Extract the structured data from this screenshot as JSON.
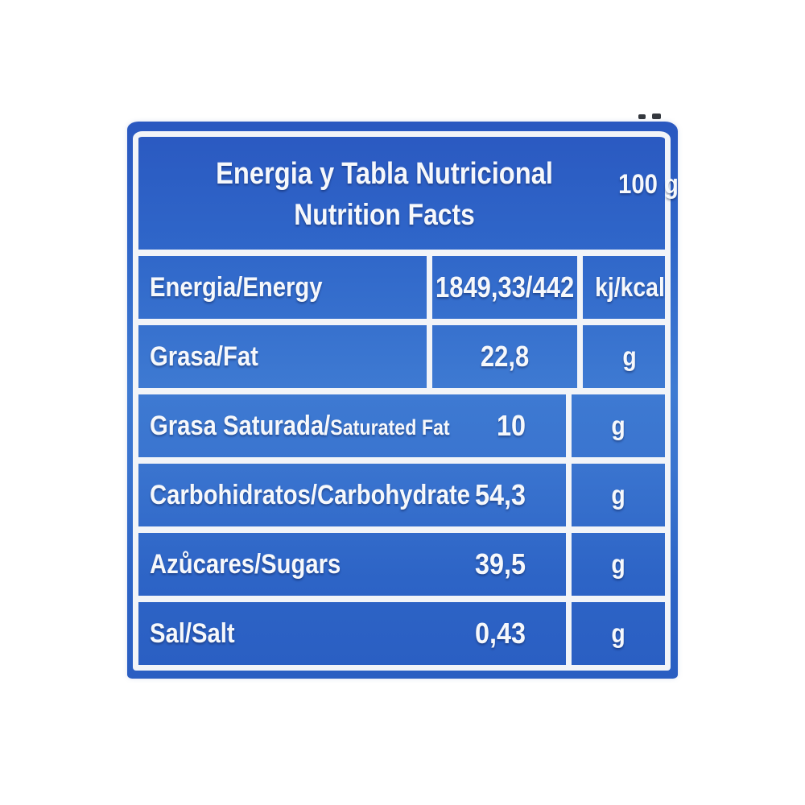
{
  "label": {
    "header": {
      "title_es": "Energia y Tabla Nutricional",
      "title_en": "Nutrition Facts",
      "serving_size": "100 g"
    },
    "rows": [
      {
        "name": "Energia/Energy",
        "value": "1849,33/442",
        "unit": "kj/kcal"
      },
      {
        "name": "Grasa/Fat",
        "value": "22,8",
        "unit": "g"
      },
      {
        "name": "Grasa Saturada/",
        "name_small": "Saturated Fat",
        "value": "10",
        "unit": "g"
      },
      {
        "name": "Carbohidratos/Carbohydrate",
        "value": "54,3",
        "unit": "g"
      },
      {
        "name": "Azůcares/Sugars",
        "value": "39,5",
        "unit": "g"
      },
      {
        "name": "Sal/Salt",
        "value": "0,43",
        "unit": "g"
      }
    ],
    "colors": {
      "panel_blue": "#2f66c9",
      "panel_blue_light": "#3e7ad2",
      "line_white": "#f2f4f8",
      "text_white": "#f6f8fb"
    }
  }
}
